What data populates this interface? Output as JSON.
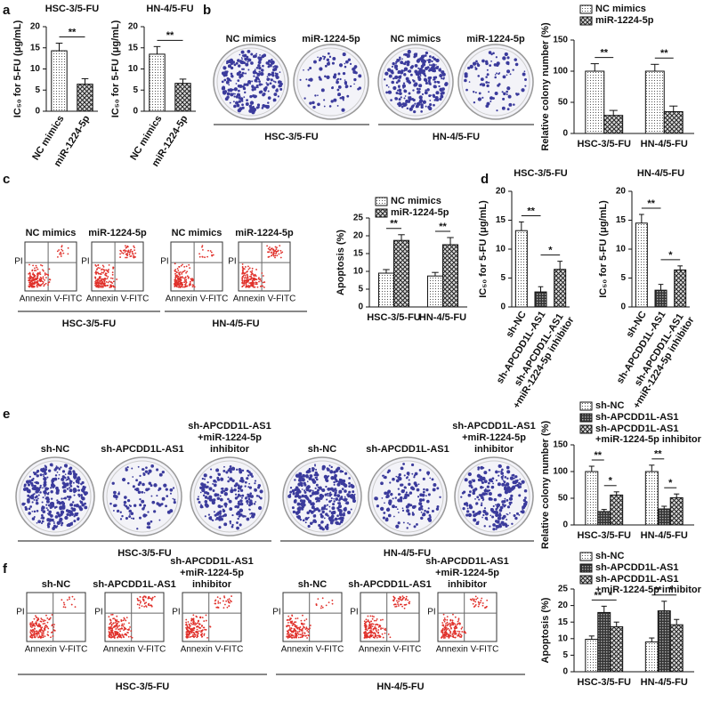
{
  "panels": {
    "labels": [
      "a",
      "b",
      "c",
      "d",
      "e",
      "f"
    ],
    "b": {
      "images": [
        "NC mimics",
        "miR-1224-5p",
        "NC mimics",
        "miR-1224-5p"
      ],
      "groups": [
        "HSC-3/5-FU",
        "HN-4/5-FU"
      ]
    },
    "c": {
      "plots": [
        "NC mimics",
        "miR-1224-5p",
        "NC mimics",
        "miR-1224-5p"
      ],
      "x_axis": "Annexin V-FITC",
      "y_axis": "PI",
      "groups": [
        "HSC-3/5-FU",
        "HN-4/5-FU"
      ]
    },
    "e": {
      "images": [
        [
          "sh-NC"
        ],
        [
          "sh-APCDD1L-AS1"
        ],
        [
          "sh-APCDD1L-AS1",
          "+miR-1224-5p",
          "inhibitor"
        ],
        [
          "sh-NC"
        ],
        [
          "sh-APCDD1L-AS1"
        ],
        [
          "sh-APCDD1L-AS1",
          "+miR-1224-5p",
          "inhibitor"
        ]
      ],
      "groups": [
        "HSC-3/5-FU",
        "HN-4/5-FU"
      ]
    },
    "f": {
      "plots": [
        [
          "sh-NC"
        ],
        [
          "sh-APCDD1L-AS1"
        ],
        [
          "sh-APCDD1L-AS1",
          "+miR-1224-5p",
          "inhibitor"
        ],
        [
          "sh-NC"
        ],
        [
          "sh-APCDD1L-AS1"
        ],
        [
          "sh-APCDD1L-AS1",
          "+miR-1224-5p",
          "inhibitor"
        ]
      ],
      "x_axis": "Annexin V-FITC",
      "y_axis": "PI",
      "groups": [
        "HSC-3/5-FU",
        "HN-4/5-FU"
      ]
    }
  },
  "chart_data": [
    {
      "type": "bar",
      "title": "HSC-3/5-FU",
      "y_label": "IC₅₀ for 5-FU (μg/mL)",
      "categories": [
        "NC mimics",
        "miR-1224-5p"
      ],
      "values": [
        14.3,
        6.4
      ],
      "errors": [
        1.8,
        1.3
      ],
      "ylim": [
        0,
        20
      ],
      "yticks": [
        0,
        5,
        10,
        15,
        20
      ],
      "significance": [
        "**"
      ]
    },
    {
      "type": "bar",
      "title": "HN-4/5-FU",
      "y_label": "IC₅₀ for 5-FU (μg/mL)",
      "categories": [
        "NC mimics",
        "miR-1224-5p"
      ],
      "values": [
        13.5,
        6.6
      ],
      "errors": [
        1.8,
        1.0
      ],
      "ylim": [
        0,
        20
      ],
      "yticks": [
        0,
        5,
        10,
        15,
        20
      ],
      "significance": [
        "**"
      ]
    },
    {
      "type": "bar",
      "y_label": "Relative colony number (%)",
      "categories": [
        "HSC-3/5-FU",
        "HN-4/5-FU"
      ],
      "series": [
        {
          "name": "NC mimics",
          "values": [
            100,
            100
          ],
          "errors": [
            12,
            11
          ]
        },
        {
          "name": "miR-1224-5p",
          "values": [
            29,
            35
          ],
          "errors": [
            8,
            9
          ]
        }
      ],
      "ylim": [
        0,
        150
      ],
      "yticks": [
        0,
        50,
        100,
        150
      ],
      "significance": [
        "**",
        "**"
      ]
    },
    {
      "type": "bar",
      "y_label": "Apoptosis (%)",
      "categories": [
        "HSC-3/5-FU",
        "HN-4/5-FU"
      ],
      "series": [
        {
          "name": "NC mimics",
          "values": [
            9.5,
            8.7
          ],
          "errors": [
            1.0,
            1.0
          ]
        },
        {
          "name": "miR-1224-5p",
          "values": [
            18.7,
            17.5
          ],
          "errors": [
            1.6,
            2.0
          ]
        }
      ],
      "ylim": [
        0,
        25
      ],
      "yticks": [
        0,
        5,
        10,
        15,
        20,
        25
      ],
      "significance": [
        "**",
        "**"
      ]
    },
    {
      "type": "bar",
      "title": "HSC-3/5-FU",
      "y_label": "IC₅₀ for 5-FU (μg/mL)",
      "categories": [
        "sh-NC",
        "sh-APCDD1L-AS1",
        "sh-APCDD1L-AS1 +miR-1224-5p inhibitor"
      ],
      "values": [
        13.2,
        2.6,
        6.5
      ],
      "errors": [
        1.5,
        0.9,
        1.4
      ],
      "ylim": [
        0,
        20
      ],
      "yticks": [
        0,
        5,
        10,
        15,
        20
      ],
      "significance": [
        "**",
        "*"
      ]
    },
    {
      "type": "bar",
      "title": "HN-4/5-FU",
      "y_label": "IC₅₀ for 5-FU (μg/mL)",
      "categories": [
        "sh-NC",
        "sh-APCDD1L-AS1",
        "sh-APCDD1L-AS1 +miR-1224-5p inhibitor"
      ],
      "values": [
        14.5,
        2.9,
        6.4
      ],
      "errors": [
        1.5,
        1.0,
        0.7
      ],
      "ylim": [
        0,
        20
      ],
      "yticks": [
        0,
        5,
        10,
        15,
        20
      ],
      "significance": [
        "**",
        "*"
      ]
    },
    {
      "type": "bar",
      "y_label": "Relative colony number (%)",
      "categories": [
        "HSC-3/5-FU",
        "HN-4/5-FU"
      ],
      "series": [
        {
          "name": "sh-NC",
          "values": [
            100,
            100
          ],
          "errors": [
            10,
            12
          ]
        },
        {
          "name": "sh-APCDD1L-AS1",
          "values": [
            25,
            30
          ],
          "errors": [
            4,
            5
          ]
        },
        {
          "name": "sh-APCDD1L-AS1 +miR-1224-5p inhibitor",
          "values": [
            56,
            51
          ],
          "errors": [
            6,
            7
          ]
        }
      ],
      "ylim": [
        0,
        150
      ],
      "yticks": [
        0,
        50,
        100,
        150
      ],
      "significance": [
        "**",
        "*",
        "**",
        "*"
      ]
    },
    {
      "type": "bar",
      "y_label": "Apoptosis (%)",
      "categories": [
        "HSC-3/5-FU",
        "HN-4/5-FU"
      ],
      "series": [
        {
          "name": "sh-NC",
          "values": [
            9.8,
            9.0
          ],
          "errors": [
            1.0,
            1.2
          ]
        },
        {
          "name": "sh-APCDD1L-AS1",
          "values": [
            17.9,
            18.4
          ],
          "errors": [
            1.9,
            2.9
          ]
        },
        {
          "name": "sh-APCDD1L-AS1 +miR-1224-5p inhibitor",
          "values": [
            13.6,
            14.2
          ],
          "errors": [
            1.4,
            1.6
          ]
        }
      ],
      "ylim": [
        0,
        25
      ],
      "yticks": [
        0,
        5,
        10,
        15,
        20,
        25
      ],
      "significance": [
        "**",
        "*",
        "**",
        "*"
      ]
    }
  ]
}
